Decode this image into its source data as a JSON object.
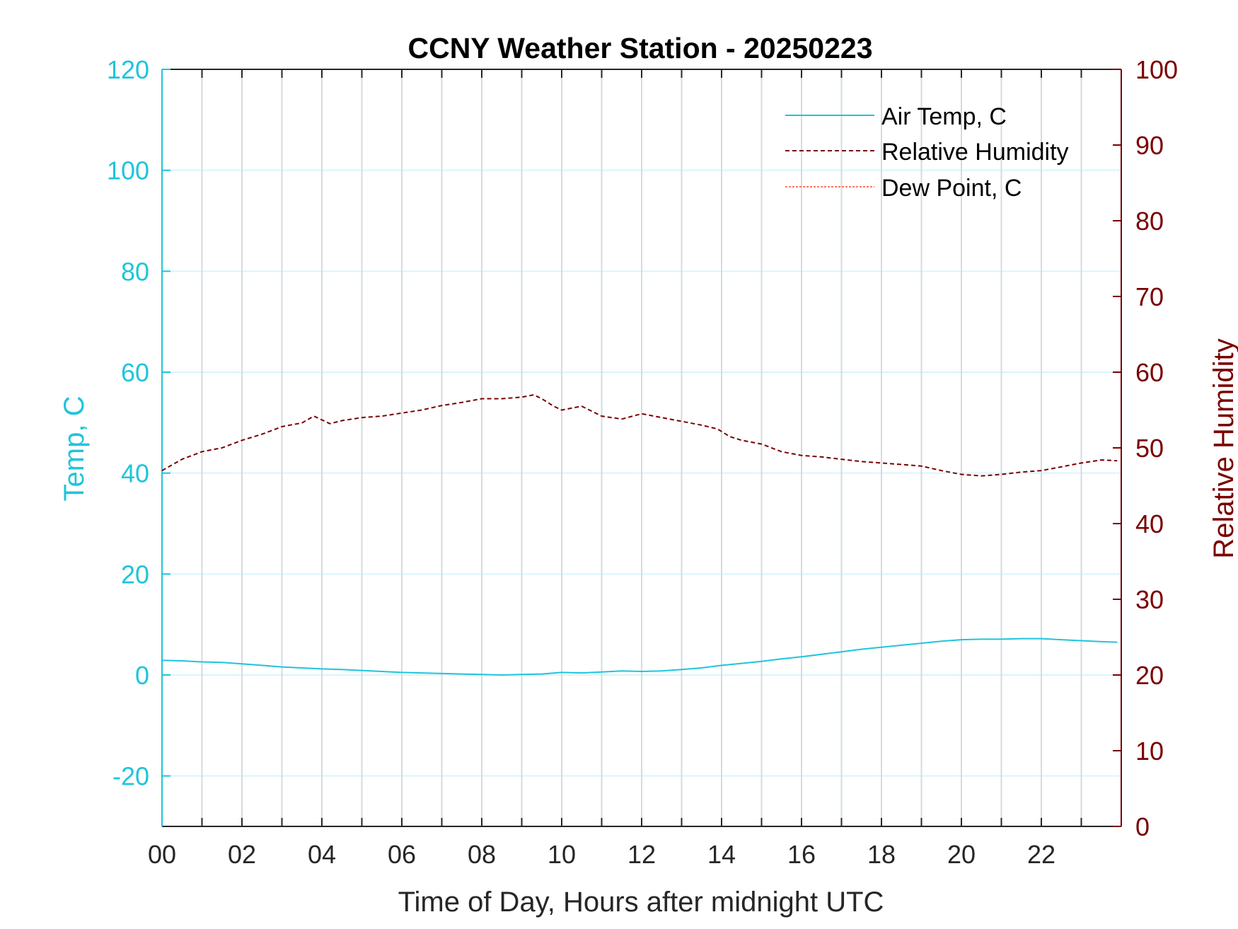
{
  "chart_data": {
    "type": "line",
    "title": "CCNY Weather Station - 20250223",
    "xlabel": "Time of Day, Hours after midnight UTC",
    "ylabel_left": "Temp, C",
    "ylabel_right": "Relative Humidity",
    "xlim": [
      0,
      24
    ],
    "ylim_left": [
      -30,
      120
    ],
    "ylim_right": [
      0,
      100
    ],
    "x_ticks": [
      0,
      2,
      4,
      6,
      8,
      10,
      12,
      14,
      16,
      18,
      20,
      22
    ],
    "x_tick_labels": [
      "00",
      "02",
      "04",
      "06",
      "08",
      "10",
      "12",
      "14",
      "16",
      "18",
      "20",
      "22"
    ],
    "y_left_ticks": [
      -20,
      0,
      20,
      40,
      60,
      80,
      100,
      120
    ],
    "y_left_tick_labels": [
      "-20",
      "0",
      "20",
      "40",
      "60",
      "80",
      "100",
      "120"
    ],
    "y_right_ticks": [
      0,
      10,
      20,
      30,
      40,
      50,
      60,
      70,
      80,
      90,
      100
    ],
    "y_right_tick_labels": [
      "0",
      "10",
      "20",
      "30",
      "40",
      "50",
      "60",
      "70",
      "80",
      "90",
      "100"
    ],
    "grid": true,
    "legend_position": "top-right",
    "colors": {
      "air_temp": "#1fc4dc",
      "humidity": "#7a0000",
      "dew_point": "#ff4a2a",
      "left_axis": "#1fc4dc",
      "right_axis": "#7a0000",
      "vgrid": "#d3dbe2",
      "hgrid": "#d9f5fa"
    },
    "series": [
      {
        "name": "Air Temp, C",
        "axis": "left",
        "style": "solid",
        "x": [
          0,
          0.5,
          1,
          1.5,
          2,
          2.5,
          3,
          3.5,
          4,
          4.5,
          5,
          5.5,
          6,
          6.5,
          7,
          7.5,
          8,
          8.5,
          9,
          9.5,
          10,
          10.5,
          11,
          11.5,
          12,
          12.5,
          13,
          13.5,
          14,
          14.5,
          15,
          15.5,
          16,
          16.5,
          17,
          17.5,
          18,
          18.5,
          19,
          19.5,
          20,
          20.5,
          21,
          21.5,
          22,
          22.5,
          23,
          23.5,
          23.9
        ],
        "y": [
          2.9,
          2.8,
          2.6,
          2.5,
          2.2,
          1.9,
          1.6,
          1.4,
          1.2,
          1.1,
          0.9,
          0.7,
          0.5,
          0.4,
          0.3,
          0.2,
          0.1,
          0.0,
          0.1,
          0.2,
          0.5,
          0.4,
          0.6,
          0.8,
          0.7,
          0.8,
          1.1,
          1.4,
          1.9,
          2.3,
          2.7,
          3.2,
          3.6,
          4.1,
          4.6,
          5.1,
          5.5,
          5.9,
          6.3,
          6.7,
          7.0,
          7.1,
          7.1,
          7.2,
          7.2,
          7.0,
          6.8,
          6.6,
          6.5
        ]
      },
      {
        "name": "Relative Humidity",
        "axis": "right",
        "style": "dashed",
        "x": [
          0,
          0.5,
          1,
          1.5,
          2,
          2.5,
          3,
          3.5,
          3.8,
          4.2,
          4.5,
          5,
          5.5,
          6,
          6.5,
          7,
          7.5,
          8,
          8.5,
          9,
          9.3,
          9.5,
          9.8,
          10,
          10.5,
          11,
          11.5,
          12,
          12.5,
          13,
          13.5,
          13.9,
          14.2,
          14.5,
          15,
          15.5,
          16,
          16.5,
          17,
          17.5,
          18,
          18.5,
          19,
          19.5,
          20,
          20.5,
          21,
          21.5,
          22,
          22.5,
          23,
          23.5,
          23.9
        ],
        "y": [
          47.0,
          48.5,
          49.5,
          50.0,
          51.0,
          51.8,
          52.8,
          53.3,
          54.2,
          53.2,
          53.6,
          54.0,
          54.2,
          54.6,
          55.0,
          55.6,
          56.0,
          56.5,
          56.5,
          56.7,
          57.0,
          56.5,
          55.5,
          55.0,
          55.5,
          54.2,
          53.8,
          54.5,
          54.0,
          53.5,
          53.0,
          52.5,
          51.5,
          51.0,
          50.5,
          49.5,
          49.0,
          48.8,
          48.5,
          48.2,
          48.0,
          47.8,
          47.6,
          47.0,
          46.5,
          46.3,
          46.5,
          46.8,
          47.0,
          47.5,
          48.0,
          48.4,
          48.3
        ]
      },
      {
        "name": "Dew Point, C",
        "axis": "left",
        "style": "dash-dot",
        "x": [],
        "y": []
      }
    ]
  }
}
